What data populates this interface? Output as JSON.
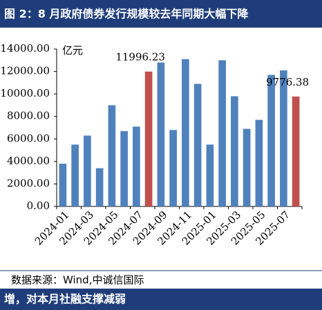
{
  "header": {
    "title": "图 2：8 月政府债券发行规模较去年同期大幅下降"
  },
  "chart_data": {
    "type": "bar",
    "unit_label": "亿元",
    "categories": [
      "2024-01",
      null,
      "2024-03",
      null,
      "2024-05",
      null,
      "2024-07",
      null,
      "2024-09",
      null,
      "2024-11",
      null,
      "2025-01",
      null,
      "2025-03",
      null,
      "2025-05",
      null,
      "2025-07",
      null
    ],
    "values": [
      3800,
      5500,
      6300,
      3400,
      9000,
      6700,
      7100,
      11996.23,
      12800,
      6800,
      13100,
      10900,
      5500,
      13000,
      9800,
      6900,
      7700,
      11700,
      12100,
      9776.38
    ],
    "value_labels": [
      null,
      null,
      null,
      null,
      null,
      null,
      null,
      "11996.23",
      null,
      null,
      null,
      null,
      null,
      null,
      null,
      null,
      null,
      null,
      null,
      "9776.38"
    ],
    "colors": [
      "#4f81bd",
      "#4f81bd",
      "#4f81bd",
      "#4f81bd",
      "#4f81bd",
      "#4f81bd",
      "#4f81bd",
      "#c0504d",
      "#4f81bd",
      "#4f81bd",
      "#4f81bd",
      "#4f81bd",
      "#4f81bd",
      "#4f81bd",
      "#4f81bd",
      "#4f81bd",
      "#4f81bd",
      "#4f81bd",
      "#4f81bd",
      "#c0504d"
    ],
    "ylim": [
      0,
      14000
    ],
    "yticks": [
      {
        "value": 0,
        "label": "0.00"
      },
      {
        "value": 2000,
        "label": "2000.00"
      },
      {
        "value": 4000,
        "label": "4000.00"
      },
      {
        "value": 6000,
        "label": "6000.00"
      },
      {
        "value": 8000,
        "label": "8000.00"
      },
      {
        "value": 10000,
        "label": "10000.00"
      },
      {
        "value": 12000,
        "label": "12000.00"
      },
      {
        "value": 14000,
        "label": "14000.00"
      }
    ],
    "grid": false
  },
  "source": "数据来源：Wind,中诚信国际",
  "footer": {
    "text": "增，对本月社融支撑减弱"
  }
}
